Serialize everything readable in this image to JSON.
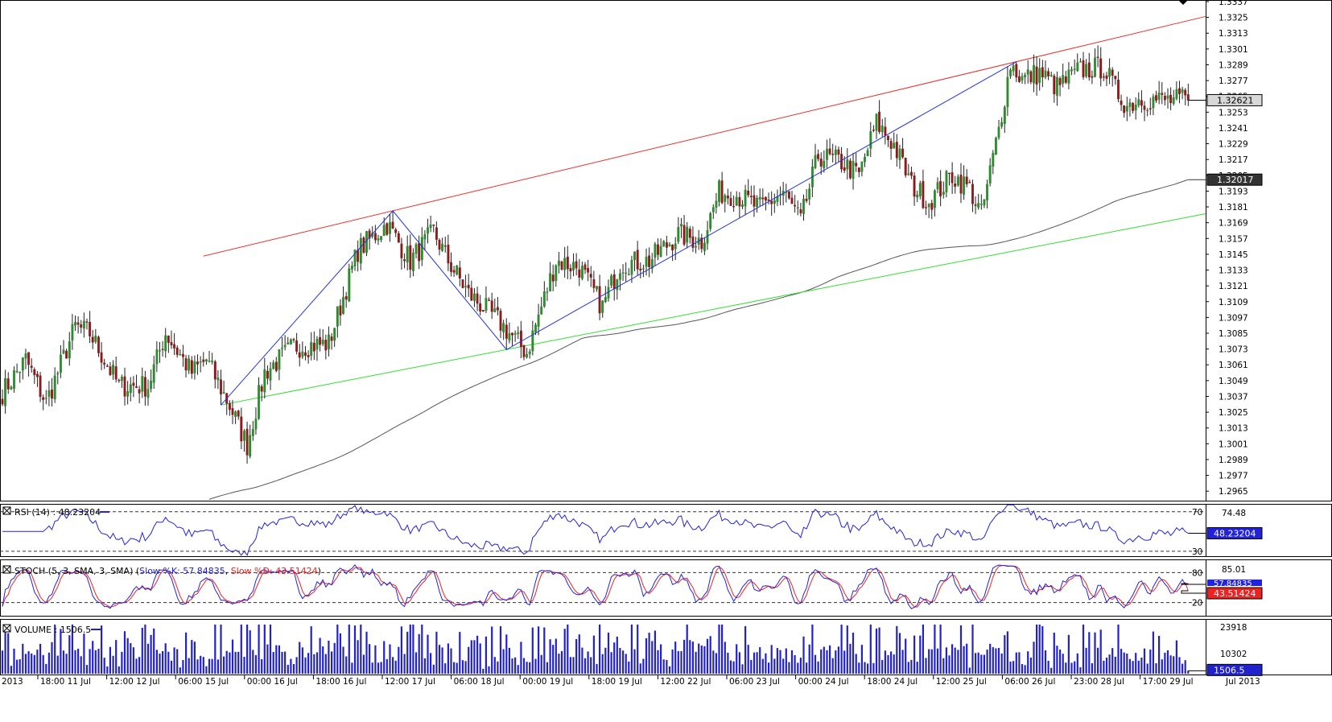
{
  "colors": {
    "bull": "#2e8b2e",
    "bear": "#8b1a1a",
    "wick": "#202020",
    "channel_upper": "#e8302a",
    "channel_lower": "#33dd33",
    "zigzag": "#2233dd",
    "ma": "#555555",
    "rsi": "#2222dd",
    "stoch_k": "#2222dd",
    "stoch_d": "#ee2222",
    "volume": "#2222cc"
  },
  "chart_data": [
    {
      "type": "candlestick",
      "name": "price",
      "ylim": [
        1.2959,
        1.3337
      ],
      "y_ticks": [
        "1.3337",
        "1.3325",
        "1.3313",
        "1.3301",
        "1.3289",
        "1.3277",
        "1.3265",
        "1.3253",
        "1.3241",
        "1.3229",
        "1.3217",
        "1.3205",
        "1.3193",
        "1.3181",
        "1.3169",
        "1.3157",
        "1.3145",
        "1.3133",
        "1.3121",
        "1.3109",
        "1.3097",
        "1.3085",
        "1.3073",
        "1.3061",
        "1.3049",
        "1.3037",
        "1.3025",
        "1.3013",
        "1.3001",
        "1.2989",
        "1.2977",
        "1.2965"
      ],
      "x_ticks": [
        "2013",
        "18:00 11 Jul",
        "12:00 12 Jul",
        "06:00 15 Jul",
        "00:00 16 Jul",
        "18:00 16 Jul",
        "12:00 17 Jul",
        "06:00 18 Jul",
        "00:00 19 Jul",
        "18:00 19 Jul",
        "12:00 22 Jul",
        "06:00 23 Jul",
        "00:00 24 Jul",
        "18:00 24 Jul",
        "12:00 25 Jul",
        "06:00 26 Jul",
        "23:00 28 Jul",
        "17:00 29 Jul",
        "Jul 2013"
      ],
      "current_price_label": "1.32621",
      "current_price": 1.32621,
      "ma_label": "1.32017",
      "ma_value": 1.32017,
      "anchors": [
        [
          0,
          1.304
        ],
        [
          8,
          1.3065
        ],
        [
          15,
          1.3032
        ],
        [
          25,
          1.309
        ],
        [
          30,
          1.3085
        ],
        [
          40,
          1.3045
        ],
        [
          50,
          1.3045
        ],
        [
          56,
          1.3085
        ],
        [
          65,
          1.3055
        ],
        [
          70,
          1.3065
        ],
        [
          78,
          1.303
        ],
        [
          84,
          1.3
        ],
        [
          90,
          1.3055
        ],
        [
          100,
          1.3075
        ],
        [
          112,
          1.3077
        ],
        [
          122,
          1.3148
        ],
        [
          132,
          1.3168
        ],
        [
          140,
          1.314
        ],
        [
          148,
          1.3162
        ],
        [
          153,
          1.314
        ],
        [
          160,
          1.3115
        ],
        [
          170,
          1.3095
        ],
        [
          180,
          1.307
        ],
        [
          190,
          1.314
        ],
        [
          198,
          1.3135
        ],
        [
          206,
          1.3105
        ],
        [
          212,
          1.3138
        ],
        [
          222,
          1.314
        ],
        [
          232,
          1.316
        ],
        [
          240,
          1.3155
        ],
        [
          246,
          1.3192
        ],
        [
          252,
          1.319
        ],
        [
          260,
          1.318
        ],
        [
          268,
          1.3192
        ],
        [
          274,
          1.317
        ],
        [
          280,
          1.322
        ],
        [
          288,
          1.3215
        ],
        [
          294,
          1.3205
        ],
        [
          300,
          1.3245
        ],
        [
          306,
          1.3228
        ],
        [
          312,
          1.3198
        ],
        [
          318,
          1.3185
        ],
        [
          326,
          1.3205
        ],
        [
          332,
          1.3195
        ],
        [
          336,
          1.3175
        ],
        [
          342,
          1.324
        ],
        [
          346,
          1.329
        ],
        [
          350,
          1.3278
        ],
        [
          356,
          1.3283
        ],
        [
          362,
          1.3272
        ],
        [
          370,
          1.3285
        ],
        [
          378,
          1.3287
        ],
        [
          382,
          1.327
        ],
        [
          386,
          1.3258
        ],
        [
          390,
          1.3263
        ],
        [
          400,
          1.3262
        ],
        [
          407,
          1.3262
        ]
      ]
    },
    {
      "type": "line",
      "name": "RSI",
      "label": "RSI (14) : 48.23204",
      "value": 48.23204,
      "ylim": [
        25,
        78
      ],
      "levels": [
        70,
        30
      ],
      "level_labels": [
        "70",
        "30"
      ],
      "axis_top_label": "74.48",
      "value_label": "48.23204"
    },
    {
      "type": "line",
      "name": "STOCH",
      "label": "STOCH (5, 3, SMA, 3, SMA) ",
      "k_label": "Slow %K: 57.84835",
      "d_label": "Slow %D: 43.51424",
      "k_value": 57.84835,
      "d_value": 43.51424,
      "ylim": [
        0,
        100
      ],
      "levels": [
        80,
        20
      ],
      "level_labels": [
        "80",
        "20"
      ],
      "axis_top_label": "85.01",
      "k_value_label": "57.84835",
      "d_value_label": "43.51424"
    },
    {
      "type": "bar",
      "name": "VOLUME",
      "label": "VOLUME : 1506.5",
      "value": 1506.5,
      "ylim": [
        0,
        26000
      ],
      "tick_labels": [
        "23918",
        "10302"
      ],
      "tick_values": [
        23918,
        10302
      ],
      "value_label": "1506.5"
    }
  ]
}
